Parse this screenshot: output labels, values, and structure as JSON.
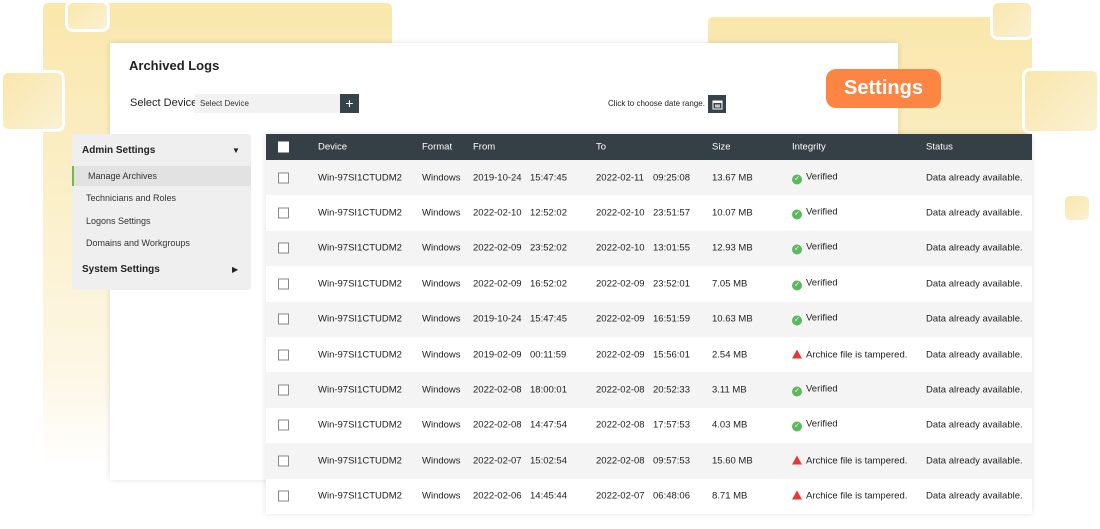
{
  "title": "Archived Logs",
  "select_device_label": "Select Device",
  "select_device_placeholder": "Select Device",
  "add_label": "+",
  "date_range_label": "Click to choose date range.",
  "settings_badge": "Settings",
  "sidebar": {
    "admin_settings": "Admin Settings",
    "items": [
      "Manage Archives",
      "Technicians and Roles",
      "Logons Settings",
      "Domains and Workgroups"
    ],
    "system_settings": "System Settings"
  },
  "table": {
    "headers": [
      "Device",
      "Format",
      "From",
      "To",
      "Size",
      "Integrity",
      "Status"
    ],
    "rows": [
      {
        "device": "Win-97SI1CTUDM2",
        "format": "Windows",
        "from_date": "2019-10-24",
        "from_time": "15:47:45",
        "to_date": "2022-02-11",
        "to_time": "09:25:08",
        "size": "13.67 MB",
        "integrity": "Verified",
        "ok": true,
        "status": "Data already available."
      },
      {
        "device": "Win-97SI1CTUDM2",
        "format": "Windows",
        "from_date": "2022-02-10",
        "from_time": "12:52:02",
        "to_date": "2022-02-10",
        "to_time": "23:51:57",
        "size": "10.07 MB",
        "integrity": "Verified",
        "ok": true,
        "status": "Data already available."
      },
      {
        "device": "Win-97SI1CTUDM2",
        "format": "Windows",
        "from_date": "2022-02-09",
        "from_time": "23:52:02",
        "to_date": "2022-02-10",
        "to_time": "13:01:55",
        "size": "12.93 MB",
        "integrity": "Verified",
        "ok": true,
        "status": "Data already available."
      },
      {
        "device": "Win-97SI1CTUDM2",
        "format": "Windows",
        "from_date": "2022-02-09",
        "from_time": "16:52:02",
        "to_date": "2022-02-09",
        "to_time": "23:52:01",
        "size": "7.05 MB",
        "integrity": "Verified",
        "ok": true,
        "status": "Data already available."
      },
      {
        "device": "Win-97SI1CTUDM2",
        "format": "Windows",
        "from_date": "2019-10-24",
        "from_time": "15:47:45",
        "to_date": "2022-02-09",
        "to_time": "16:51:59",
        "size": "10.63 MB",
        "integrity": "Verified",
        "ok": true,
        "status": "Data already available."
      },
      {
        "device": "Win-97SI1CTUDM2",
        "format": "Windows",
        "from_date": "2019-02-09",
        "from_time": "00:11:59",
        "to_date": "2022-02-09",
        "to_time": "15:56:01",
        "size": "2.54 MB",
        "integrity": "Archice file is tampered.",
        "ok": false,
        "status": "Data already available."
      },
      {
        "device": "Win-97SI1CTUDM2",
        "format": "Windows",
        "from_date": "2022-02-08",
        "from_time": "18:00:01",
        "to_date": "2022-02-08",
        "to_time": "20:52:33",
        "size": "3.11 MB",
        "integrity": "Verified",
        "ok": true,
        "status": "Data already available."
      },
      {
        "device": "Win-97SI1CTUDM2",
        "format": "Windows",
        "from_date": "2022-02-08",
        "from_time": "14:47:54",
        "to_date": "2022-02-08",
        "to_time": "17:57:53",
        "size": "4.03 MB",
        "integrity": "Verified",
        "ok": true,
        "status": "Data already available."
      },
      {
        "device": "Win-97SI1CTUDM2",
        "format": "Windows",
        "from_date": "2022-02-07",
        "from_time": "15:02:54",
        "to_date": "2022-02-08",
        "to_time": "09:57:53",
        "size": "15.60 MB",
        "integrity": "Archice file is tampered.",
        "ok": false,
        "status": "Data already available."
      },
      {
        "device": "Win-97SI1CTUDM2",
        "format": "Windows",
        "from_date": "2022-02-06",
        "from_time": "14:45:44",
        "to_date": "2022-02-07",
        "to_time": "06:48:06",
        "size": "8.71 MB",
        "integrity": "Archice file is tampered.",
        "ok": false,
        "status": "Data already available."
      }
    ]
  },
  "colors": {
    "accent": "#fd8544",
    "header_bg": "#343f46",
    "verified": "#5cb85c",
    "tampered": "#e53935",
    "active_marker": "#6cbf43"
  }
}
